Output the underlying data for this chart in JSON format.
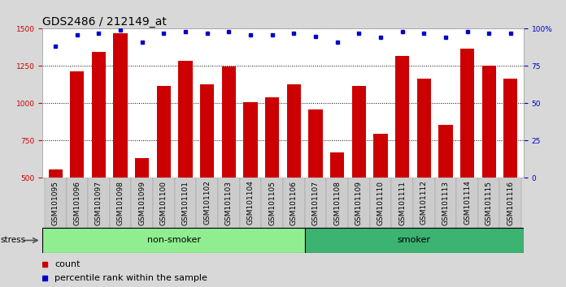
{
  "title": "GDS2486 / 212149_at",
  "categories": [
    "GSM101095",
    "GSM101096",
    "GSM101097",
    "GSM101098",
    "GSM101099",
    "GSM101100",
    "GSM101101",
    "GSM101102",
    "GSM101103",
    "GSM101104",
    "GSM101105",
    "GSM101106",
    "GSM101107",
    "GSM101108",
    "GSM101109",
    "GSM101110",
    "GSM101111",
    "GSM101112",
    "GSM101113",
    "GSM101114",
    "GSM101115",
    "GSM101116"
  ],
  "bar_values": [
    555,
    1215,
    1345,
    1470,
    635,
    1115,
    1285,
    1125,
    1245,
    1010,
    1040,
    1130,
    960,
    670,
    1115,
    795,
    1315,
    1165,
    855,
    1365,
    1250,
    1165
  ],
  "percentile_values": [
    88,
    96,
    97,
    99,
    91,
    97,
    98,
    97,
    98,
    96,
    96,
    97,
    95,
    91,
    97,
    94,
    98,
    97,
    94,
    98,
    97,
    97
  ],
  "bar_color": "#cc0000",
  "percentile_color": "#0000cc",
  "ylim_left": [
    500,
    1500
  ],
  "ylim_right": [
    0,
    100
  ],
  "yticks_left": [
    500,
    750,
    1000,
    1250,
    1500
  ],
  "yticks_right": [
    0,
    25,
    50,
    75,
    100
  ],
  "non_smoker_count": 12,
  "smoker_count": 10,
  "non_smoker_color": "#90ee90",
  "smoker_color": "#3cb371",
  "group_label_non_smoker": "non-smoker",
  "group_label_smoker": "smoker",
  "stress_label": "stress",
  "legend_count_label": "count",
  "legend_percentile_label": "percentile rank within the sample",
  "background_color": "#d8d8d8",
  "plot_bg_color": "#ffffff",
  "grid_color": "#000000",
  "title_fontsize": 10,
  "tick_fontsize": 6.5,
  "label_fontsize": 8
}
